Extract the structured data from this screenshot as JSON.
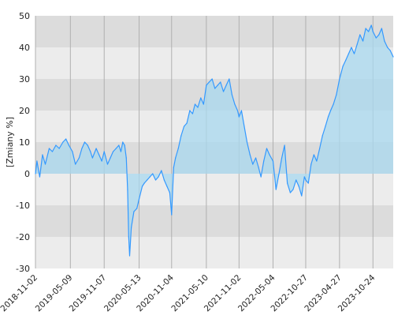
{
  "chart_data": {
    "type": "area",
    "ylabel": "[Zmiany %]",
    "xlabel": "",
    "title": "",
    "ylim": [
      -30,
      50
    ],
    "yticks": [
      -30,
      -20,
      -10,
      0,
      10,
      20,
      30,
      40,
      50
    ],
    "xlim": [
      "2018-11-02",
      "2024-02-10"
    ],
    "xticks": [
      "2018-11-02",
      "2019-05-09",
      "2019-11-07",
      "2020-05-13",
      "2020-11-04",
      "2021-05-10",
      "2021-11-02",
      "2022-05-04",
      "2022-10-27",
      "2023-04-27",
      "2023-10-24"
    ],
    "grid": true,
    "series": [
      {
        "x": [
          "2018-11-02",
          "2018-11-10",
          "2018-11-25",
          "2018-12-10",
          "2018-12-25",
          "2019-01-15",
          "2019-02-01",
          "2019-02-20",
          "2019-03-10",
          "2019-03-30",
          "2019-04-15",
          "2019-05-01",
          "2019-05-20",
          "2019-06-05",
          "2019-06-25",
          "2019-07-10",
          "2019-07-25",
          "2019-08-10",
          "2019-08-25",
          "2019-09-05",
          "2019-09-25",
          "2019-10-10",
          "2019-10-25",
          "2019-11-07",
          "2019-11-25",
          "2019-12-10",
          "2019-12-25",
          "2020-01-10",
          "2020-01-25",
          "2020-02-05",
          "2020-02-15",
          "2020-02-25",
          "2020-03-05",
          "2020-03-12",
          "2020-03-18",
          "2020-03-23",
          "2020-04-01",
          "2020-04-15",
          "2020-05-01",
          "2020-05-13",
          "2020-05-30",
          "2020-06-10",
          "2020-06-25",
          "2020-07-10",
          "2020-07-25",
          "2020-08-10",
          "2020-08-25",
          "2020-09-10",
          "2020-09-25",
          "2020-10-10",
          "2020-10-25",
          "2020-11-04",
          "2020-11-15",
          "2020-11-25",
          "2020-12-10",
          "2020-12-25",
          "2021-01-10",
          "2021-01-25",
          "2021-02-10",
          "2021-02-25",
          "2021-03-10",
          "2021-03-25",
          "2021-04-10",
          "2021-04-25",
          "2021-05-10",
          "2021-05-25",
          "2021-06-10",
          "2021-06-25",
          "2021-07-10",
          "2021-07-25",
          "2021-08-10",
          "2021-08-25",
          "2021-09-10",
          "2021-09-25",
          "2021-10-10",
          "2021-10-25",
          "2021-11-02",
          "2021-11-15",
          "2021-11-30",
          "2021-12-15",
          "2021-12-31",
          "2022-01-15",
          "2022-01-31",
          "2022-02-15",
          "2022-02-28",
          "2022-03-15",
          "2022-03-31",
          "2022-04-15",
          "2022-05-04",
          "2022-05-20",
          "2022-06-05",
          "2022-06-20",
          "2022-07-05",
          "2022-07-20",
          "2022-08-05",
          "2022-08-20",
          "2022-09-05",
          "2022-09-20",
          "2022-10-05",
          "2022-10-20",
          "2022-10-27",
          "2022-11-10",
          "2022-11-25",
          "2022-12-10",
          "2022-12-25",
          "2023-01-10",
          "2023-01-25",
          "2023-02-10",
          "2023-02-25",
          "2023-03-10",
          "2023-03-25",
          "2023-04-10",
          "2023-04-27",
          "2023-05-15",
          "2023-05-31",
          "2023-06-15",
          "2023-06-30",
          "2023-07-15",
          "2023-07-31",
          "2023-08-15",
          "2023-08-31",
          "2023-09-15",
          "2023-09-30",
          "2023-10-15",
          "2023-10-24",
          "2023-11-10",
          "2023-11-25",
          "2023-12-10",
          "2023-12-25",
          "2024-01-10",
          "2024-01-25",
          "2024-02-10"
        ],
        "y": [
          0,
          4,
          -1,
          6,
          3,
          8,
          7,
          9,
          8,
          10,
          11,
          9,
          7,
          3,
          5,
          8,
          10,
          9,
          7,
          5,
          8,
          6,
          4,
          7,
          3,
          5,
          7,
          8,
          9,
          7,
          10,
          9,
          5,
          -5,
          -20,
          -26,
          -17,
          -12,
          -11,
          -8,
          -4,
          -3,
          -2,
          -1,
          0,
          -2,
          -1,
          1,
          -2,
          -4,
          -6,
          -13,
          2,
          5,
          8,
          12,
          15,
          16,
          20,
          19,
          22,
          21,
          24,
          22,
          28,
          29,
          30,
          27,
          28,
          29,
          26,
          28,
          30,
          25,
          22,
          20,
          18,
          20,
          15,
          10,
          6,
          3,
          5,
          2,
          -1,
          4,
          8,
          6,
          4,
          -5,
          0,
          5,
          9,
          -3,
          -6,
          -5,
          -2,
          -4,
          -7,
          -1,
          -2,
          -3,
          3,
          6,
          4,
          8,
          12,
          15,
          18,
          20,
          22,
          25,
          30,
          34,
          36,
          38,
          40,
          38,
          41,
          44,
          42,
          46,
          45,
          47,
          45,
          43,
          44,
          46,
          42,
          40,
          39,
          37
        ]
      }
    ]
  }
}
